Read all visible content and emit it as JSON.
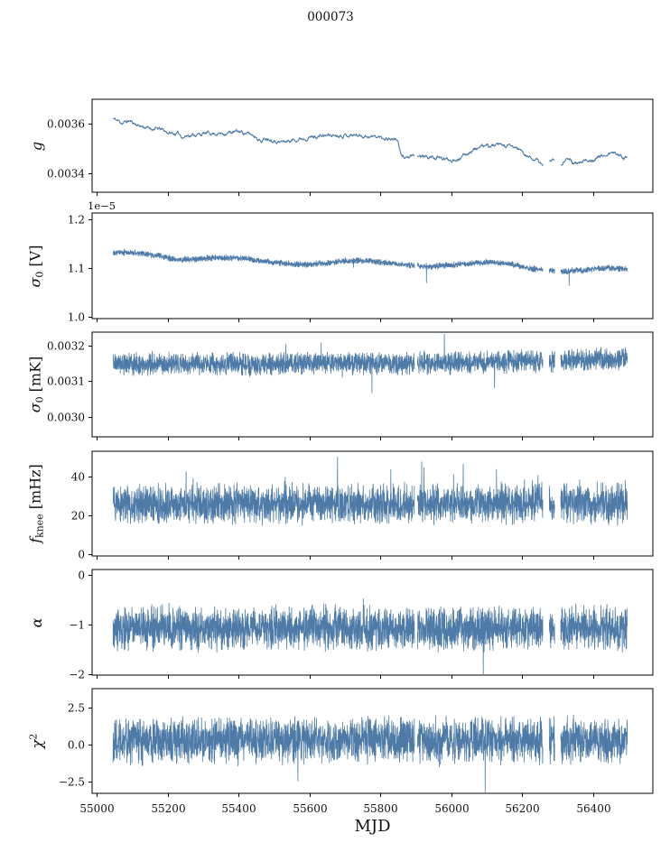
{
  "title": "000073",
  "xlabel": "MJD",
  "chart_data": {
    "type": "line",
    "title": "000073",
    "xlabel": "MJD",
    "line_color": "#4d7aa7",
    "axes_color": "#000000",
    "legend": "none",
    "grid": false,
    "xlim": [
      54987,
      56568
    ],
    "xticks": [
      {
        "v": 55000,
        "label": "55000"
      },
      {
        "v": 55200,
        "label": "55200"
      },
      {
        "v": 55400,
        "label": "55400"
      },
      {
        "v": 55600,
        "label": "55600"
      },
      {
        "v": 55800,
        "label": "55800"
      },
      {
        "v": 56000,
        "label": "56000"
      },
      {
        "v": 56200,
        "label": "56200"
      },
      {
        "v": 56400,
        "label": "56400"
      }
    ],
    "x_start": 55046,
    "x_end": 56496,
    "gaps": [
      [
        55896,
        55904
      ],
      [
        56258,
        56276
      ],
      [
        56291,
        56308
      ]
    ],
    "panels": [
      {
        "name": "g",
        "ylabel": [
          {
            "t": "g",
            "i": true
          }
        ],
        "ylim": [
          0.003324,
          0.003698
        ],
        "yticks": [
          {
            "v": 0.0034,
            "label": "0.0034"
          },
          {
            "v": 0.0036,
            "label": "0.0036"
          }
        ],
        "style": "smooth",
        "noise_hw": 1e-05,
        "seed": 11,
        "trend": [
          [
            55046,
            0.00362
          ],
          [
            55072,
            0.003603
          ],
          [
            55092,
            0.003611
          ],
          [
            55115,
            0.003595
          ],
          [
            55145,
            0.003582
          ],
          [
            55180,
            0.003577
          ],
          [
            55205,
            0.003562
          ],
          [
            55232,
            0.003558
          ],
          [
            55243,
            0.003546
          ],
          [
            55258,
            0.003554
          ],
          [
            55290,
            0.003557
          ],
          [
            55320,
            0.003562
          ],
          [
            55350,
            0.00356
          ],
          [
            55380,
            0.003565
          ],
          [
            55405,
            0.003568
          ],
          [
            55430,
            0.003558
          ],
          [
            55450,
            0.003548
          ],
          [
            55465,
            0.003528
          ],
          [
            55478,
            0.003543
          ],
          [
            55495,
            0.003538
          ],
          [
            55515,
            0.003526
          ],
          [
            55540,
            0.00353
          ],
          [
            55565,
            0.003538
          ],
          [
            55595,
            0.003545
          ],
          [
            55625,
            0.003549
          ],
          [
            55655,
            0.003553
          ],
          [
            55695,
            0.003555
          ],
          [
            55735,
            0.003554
          ],
          [
            55765,
            0.00355
          ],
          [
            55795,
            0.003545
          ],
          [
            55825,
            0.003541
          ],
          [
            55848,
            0.003536
          ],
          [
            55858,
            0.003468
          ],
          [
            55885,
            0.003465
          ],
          [
            55915,
            0.003468
          ],
          [
            55945,
            0.003465
          ],
          [
            55975,
            0.003458
          ],
          [
            56000,
            0.003455
          ],
          [
            56030,
            0.003465
          ],
          [
            56060,
            0.003495
          ],
          [
            56090,
            0.003508
          ],
          [
            56125,
            0.003512
          ],
          [
            56160,
            0.003508
          ],
          [
            56190,
            0.0035
          ],
          [
            56210,
            0.00347
          ],
          [
            56235,
            0.003458
          ],
          [
            56255,
            0.003436
          ],
          [
            56272,
            0.003448
          ],
          [
            56290,
            0.003456
          ],
          [
            56308,
            0.00344
          ],
          [
            56325,
            0.003464
          ],
          [
            56342,
            0.003442
          ],
          [
            56358,
            0.003436
          ],
          [
            56378,
            0.003448
          ],
          [
            56400,
            0.003458
          ],
          [
            56422,
            0.003468
          ],
          [
            56448,
            0.003482
          ],
          [
            56468,
            0.003478
          ],
          [
            56484,
            0.003468
          ],
          [
            56496,
            0.00346
          ]
        ]
      },
      {
        "name": "sigma0-V",
        "ylabel": [
          {
            "t": "σ",
            "i": true
          },
          {
            "t": "0",
            "sub": true
          },
          {
            "t": " [V]"
          }
        ],
        "offset_text": "1e−5",
        "ylim": [
          9.97e-06,
          1.212e-05
        ],
        "yticks": [
          {
            "v": 1e-05,
            "label": "1.0"
          },
          {
            "v": 1.1e-05,
            "label": "1.1"
          },
          {
            "v": 1.2e-05,
            "label": "1.2"
          }
        ],
        "style": "band",
        "noise_hw": 7e-08,
        "seed": 22,
        "spike_dn": {
          "p": 0.003,
          "amp": 2.5e-07
        },
        "spikes_forced": [
          [
            55930,
            1.07e-05
          ],
          [
            56332,
            1.064e-05
          ]
        ],
        "trend": [
          [
            55046,
            1.133e-05
          ],
          [
            55120,
            1.13e-05
          ],
          [
            55180,
            1.124e-05
          ],
          [
            55230,
            1.116e-05
          ],
          [
            55270,
            1.118e-05
          ],
          [
            55330,
            1.12e-05
          ],
          [
            55400,
            1.121e-05
          ],
          [
            55460,
            1.115e-05
          ],
          [
            55520,
            1.11e-05
          ],
          [
            55580,
            1.107e-05
          ],
          [
            55640,
            1.109e-05
          ],
          [
            55700,
            1.114e-05
          ],
          [
            55760,
            1.115e-05
          ],
          [
            55820,
            1.11e-05
          ],
          [
            55880,
            1.106e-05
          ],
          [
            55940,
            1.103e-05
          ],
          [
            56000,
            1.106e-05
          ],
          [
            56060,
            1.11e-05
          ],
          [
            56120,
            1.112e-05
          ],
          [
            56170,
            1.108e-05
          ],
          [
            56220,
            1.099e-05
          ],
          [
            56270,
            1.096e-05
          ],
          [
            56320,
            1.093e-05
          ],
          [
            56380,
            1.096e-05
          ],
          [
            56440,
            1.1e-05
          ],
          [
            56496,
            1.098e-05
          ]
        ]
      },
      {
        "name": "sigma0-mK",
        "ylabel": [
          {
            "t": "σ",
            "i": true
          },
          {
            "t": "0",
            "sub": true
          },
          {
            "t": " [mK]"
          }
        ],
        "ylim": [
          0.002944,
          0.003238
        ],
        "yticks": [
          {
            "v": 0.003,
            "label": "0.0030"
          },
          {
            "v": 0.0031,
            "label": "0.0031"
          },
          {
            "v": 0.0032,
            "label": "0.0032"
          }
        ],
        "style": "band",
        "noise_hw": 3.6e-05,
        "seed": 33,
        "spike_up": {
          "p": 0.002,
          "amp": 6e-05
        },
        "spike_dn": {
          "p": 0.002,
          "amp": 6e-05
        },
        "spikes_forced": [
          [
            55776,
            0.003068
          ],
          [
            55980,
            0.003232
          ],
          [
            56122,
            0.003082
          ]
        ],
        "trend": [
          [
            55046,
            0.003147
          ],
          [
            55250,
            0.00315
          ],
          [
            55450,
            0.003147
          ],
          [
            55650,
            0.003151
          ],
          [
            55850,
            0.00315
          ],
          [
            56050,
            0.003152
          ],
          [
            56200,
            0.003156
          ],
          [
            56350,
            0.00316
          ],
          [
            56496,
            0.003163
          ]
        ]
      },
      {
        "name": "fknee",
        "ylabel": [
          {
            "t": "f",
            "i": true
          },
          {
            "t": "knee",
            "sub": true
          },
          {
            "t": " [mHz]"
          }
        ],
        "ylim": [
          -0.9,
          53
        ],
        "yticks": [
          {
            "v": 0,
            "label": "0"
          },
          {
            "v": 20,
            "label": "20"
          },
          {
            "v": 40,
            "label": "40"
          }
        ],
        "style": "band",
        "noise_hw": 11.5,
        "seed": 44,
        "spike_up": {
          "p": 0.02,
          "amp": 18
        },
        "spike_dn": {
          "p": 0.012,
          "amp": 4
        },
        "trend": [
          [
            55046,
            25.8
          ],
          [
            56496,
            26.2
          ]
        ]
      },
      {
        "name": "alpha",
        "ylabel": [
          {
            "t": "α",
            "i": true
          }
        ],
        "ylim": [
          -2.02,
          0.11
        ],
        "yticks": [
          {
            "v": -2,
            "label": "−2"
          },
          {
            "v": -1,
            "label": "−1"
          },
          {
            "v": 0,
            "label": "0"
          }
        ],
        "style": "band",
        "noise_hw": 0.5,
        "seed": 55,
        "spike_up": {
          "p": 0.012,
          "amp": 0.35
        },
        "spike_dn": {
          "p": 0.012,
          "amp": 0.4
        },
        "spikes_forced": [
          [
            56090,
            -2.02
          ]
        ],
        "trend": [
          [
            55046,
            -1.07
          ],
          [
            55350,
            -1.1
          ],
          [
            55600,
            -1.06
          ],
          [
            55900,
            -1.09
          ],
          [
            56150,
            -1.07
          ],
          [
            56496,
            -1.07
          ]
        ]
      },
      {
        "name": "chi2",
        "ylabel": [
          {
            "t": "χ",
            "i": true
          },
          {
            "t": "2",
            "sup": true
          }
        ],
        "ylim": [
          -3.29,
          3.78
        ],
        "yticks": [
          {
            "v": -2.5,
            "label": "−2.5"
          },
          {
            "v": 0,
            "label": "0.0"
          },
          {
            "v": 2.5,
            "label": "2.5"
          }
        ],
        "style": "band",
        "noise_hw": 1.75,
        "seed": 66,
        "spike_up": {
          "p": 0.012,
          "amp": 0.9
        },
        "spike_dn": {
          "p": 0.01,
          "amp": 0.9
        },
        "spikes_forced": [
          [
            55567,
            -2.45
          ],
          [
            56095,
            -3.2
          ]
        ],
        "trend": [
          [
            55046,
            0.28
          ],
          [
            56496,
            0.32
          ]
        ]
      }
    ]
  }
}
